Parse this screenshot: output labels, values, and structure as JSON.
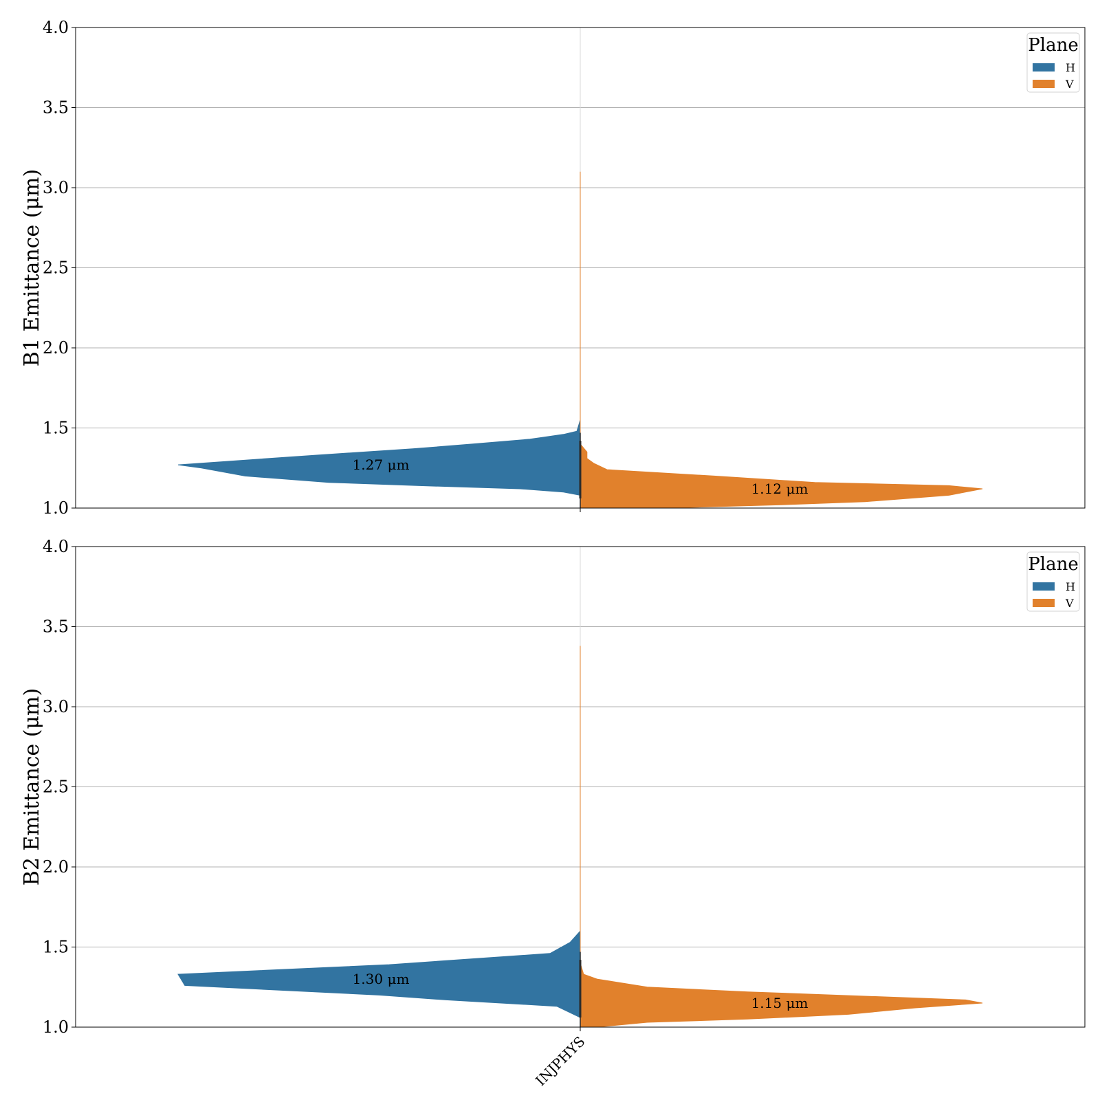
{
  "chart_data": [
    {
      "type": "violin",
      "split": true,
      "ylabel": "B1 Emittance (μm)",
      "ylim": [
        1.0,
        4.0
      ],
      "yticks": [
        "1.0",
        "1.5",
        "2.0",
        "2.5",
        "3.0",
        "3.5",
        "4.0"
      ],
      "grid": true,
      "categories": [
        "INJPHYS"
      ],
      "show_x_tick_labels": false,
      "legend": {
        "title": "Plane",
        "placement": "top-right",
        "entries": [
          "H",
          "V"
        ]
      },
      "series": [
        {
          "name": "H",
          "color": "#3274a1",
          "median_label": "1.27 μm",
          "median": 1.27,
          "density": [
            [
              1.0,
              0.0
            ],
            [
              1.08,
              0.0
            ],
            [
              1.1,
              0.05
            ],
            [
              1.12,
              0.18
            ],
            [
              1.14,
              0.48
            ],
            [
              1.16,
              0.75
            ],
            [
              1.2,
              1.0
            ],
            [
              1.25,
              1.13
            ],
            [
              1.27,
              1.2
            ],
            [
              1.33,
              0.79
            ],
            [
              1.37,
              0.5
            ],
            [
              1.4,
              0.32
            ],
            [
              1.43,
              0.15
            ],
            [
              1.46,
              0.05
            ],
            [
              1.48,
              0.01
            ],
            [
              1.55,
              0.0
            ],
            [
              1.65,
              0.0
            ]
          ]
        },
        {
          "name": "V",
          "color": "#e1812c",
          "median_label": "1.12 μm",
          "median": 1.12,
          "density": [
            [
              1.0,
              0.0
            ],
            [
              1.0,
              0.25
            ],
            [
              1.02,
              0.6
            ],
            [
              1.04,
              0.85
            ],
            [
              1.08,
              1.1
            ],
            [
              1.12,
              1.2
            ],
            [
              1.14,
              1.1
            ],
            [
              1.16,
              0.7
            ],
            [
              1.2,
              0.4
            ],
            [
              1.24,
              0.08
            ],
            [
              1.28,
              0.04
            ],
            [
              1.31,
              0.02
            ],
            [
              1.35,
              0.02
            ],
            [
              1.4,
              0.0
            ],
            [
              1.5,
              0.0
            ],
            [
              3.05,
              0.0
            ],
            [
              3.1,
              0.0
            ]
          ]
        }
      ]
    },
    {
      "type": "violin",
      "split": true,
      "ylabel": "B2 Emittance (μm)",
      "ylim": [
        1.0,
        4.0
      ],
      "yticks": [
        "1.0",
        "1.5",
        "2.0",
        "2.5",
        "3.0",
        "3.5",
        "4.0"
      ],
      "grid": true,
      "categories": [
        "INJPHYS"
      ],
      "show_x_tick_labels": true,
      "legend": {
        "title": "Plane",
        "placement": "top-right",
        "entries": [
          "H",
          "V"
        ]
      },
      "series": [
        {
          "name": "H",
          "color": "#3274a1",
          "median_label": "1.30 μm",
          "median": 1.3,
          "density": [
            [
              1.0,
              0.0
            ],
            [
              1.06,
              0.0
            ],
            [
              1.13,
              0.07
            ],
            [
              1.17,
              0.4
            ],
            [
              1.2,
              0.6
            ],
            [
              1.26,
              1.18
            ],
            [
              1.33,
              1.2
            ],
            [
              1.39,
              0.57
            ],
            [
              1.46,
              0.09
            ],
            [
              1.53,
              0.03
            ],
            [
              1.6,
              0.0
            ],
            [
              1.7,
              0.0
            ],
            [
              1.8,
              0.0
            ]
          ]
        },
        {
          "name": "V",
          "color": "#e1812c",
          "median_label": "1.15 μm",
          "median": 1.15,
          "density": [
            [
              1.0,
              0.0
            ],
            [
              1.0,
              0.05
            ],
            [
              1.03,
              0.2
            ],
            [
              1.05,
              0.5
            ],
            [
              1.08,
              0.8
            ],
            [
              1.12,
              1.0
            ],
            [
              1.15,
              1.2
            ],
            [
              1.17,
              1.15
            ],
            [
              1.22,
              0.5
            ],
            [
              1.25,
              0.2
            ],
            [
              1.3,
              0.05
            ],
            [
              1.33,
              0.01
            ],
            [
              1.4,
              0.0
            ],
            [
              1.45,
              0.0
            ],
            [
              3.33,
              0.0
            ],
            [
              3.38,
              0.0
            ]
          ]
        }
      ]
    }
  ]
}
